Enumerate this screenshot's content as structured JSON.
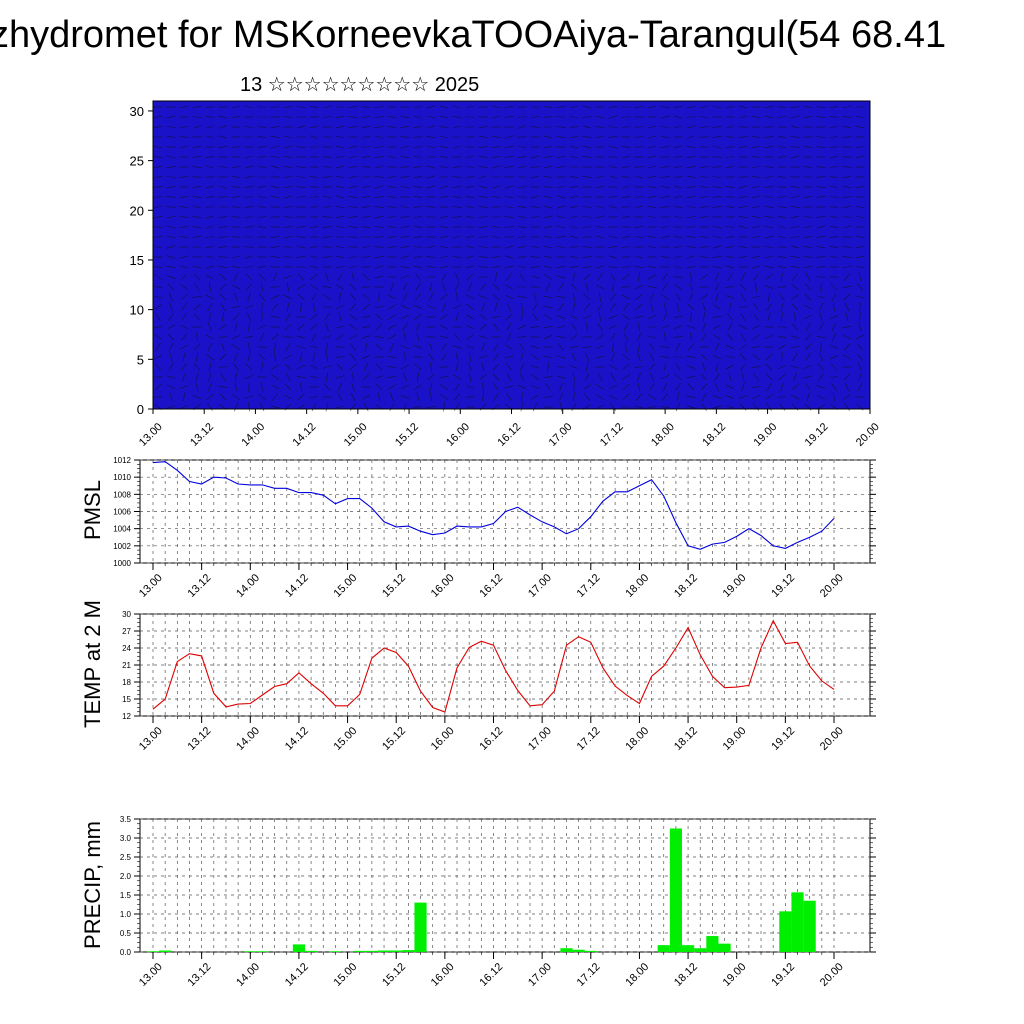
{
  "header": {
    "title": "zhydromet for MSKorneevkaTOOAiya-Tarangul(54 68.41",
    "subtitle": "13 ☆☆☆☆☆☆☆☆☆ 2025"
  },
  "chart_data": [
    {
      "type": "heatmap",
      "name_key": "vertical-section",
      "x_categories": [
        "13.00",
        "13.12",
        "14.00",
        "14.12",
        "15.00",
        "15.12",
        "16.00",
        "16.12",
        "17.00",
        "17.12",
        "18.00",
        "18.12",
        "19.00",
        "19.12",
        "20.00"
      ],
      "ylim": [
        0,
        31
      ],
      "y_ticks": [
        0,
        5,
        10,
        15,
        20,
        25,
        30
      ],
      "colormap": [
        "#1a12c8",
        "#2a3ee8",
        "#5a8cf0",
        "#bde0ff",
        "#f3e060",
        "#f7b500",
        "#f27a00",
        "#e84500",
        "#e01000"
      ],
      "overlay": "wind barbs"
    },
    {
      "type": "line",
      "ylabel": "PMSL",
      "ylim": [
        1000,
        1012
      ],
      "y_ticks": [
        1000,
        1002,
        1004,
        1006,
        1008,
        1010,
        1012
      ],
      "x_ticks": [
        "13.00",
        "13.12",
        "14.00",
        "14.12",
        "15.00",
        "15.12",
        "16.00",
        "16.12",
        "17.00",
        "17.12",
        "18.00",
        "18.12",
        "19.00",
        "19.12",
        "20.00"
      ],
      "color": "#0000dd",
      "values": [
        1011.7,
        1011.8,
        1010.8,
        1009.5,
        1009.2,
        1010.0,
        1009.9,
        1009.2,
        1009.1,
        1009.1,
        1008.7,
        1008.7,
        1008.2,
        1008.2,
        1007.9,
        1006.9,
        1007.5,
        1007.5,
        1006.4,
        1004.8,
        1004.2,
        1004.3,
        1003.7,
        1003.3,
        1003.5,
        1004.3,
        1004.2,
        1004.2,
        1004.6,
        1006.0,
        1006.5,
        1005.6,
        1004.8,
        1004.2,
        1003.4,
        1004.0,
        1005.4,
        1007.2,
        1008.3,
        1008.3,
        1009.0,
        1009.7,
        1007.8,
        1004.7,
        1002.0,
        1001.6,
        1002.2,
        1002.4,
        1003.1,
        1004.0,
        1003.2,
        1002.0,
        1001.7,
        1002.4,
        1003.0,
        1003.7,
        1005.2
      ]
    },
    {
      "type": "line",
      "ylabel": "TEMP at 2 M",
      "ylim": [
        12,
        30
      ],
      "y_ticks": [
        12,
        15,
        18,
        21,
        24,
        27,
        30
      ],
      "x_ticks": [
        "13.00",
        "13.12",
        "14.00",
        "14.12",
        "15.00",
        "15.12",
        "16.00",
        "16.12",
        "17.00",
        "17.12",
        "18.00",
        "18.12",
        "19.00",
        "19.12",
        "20.00"
      ],
      "color": "#dd0000",
      "values": [
        13.2,
        15.0,
        21.6,
        23.0,
        22.6,
        16.0,
        13.6,
        14.1,
        14.2,
        15.7,
        17.2,
        17.7,
        19.6,
        17.7,
        16.0,
        13.8,
        13.8,
        15.8,
        22.2,
        24.0,
        23.2,
        20.8,
        16.4,
        13.5,
        12.7,
        20.5,
        24.1,
        25.2,
        24.5,
        20.0,
        16.5,
        13.8,
        14.0,
        16.4,
        24.5,
        26.0,
        25.0,
        20.5,
        17.3,
        15.6,
        14.2,
        19.0,
        20.8,
        24.0,
        27.6,
        22.8,
        19.0,
        17.0,
        17.1,
        17.4,
        24.0,
        28.8,
        24.8,
        25.0,
        20.8,
        18.2,
        16.7
      ]
    },
    {
      "type": "bar",
      "ylabel": "PRECIP, mm",
      "ylim": [
        0,
        3.5
      ],
      "y_ticks": [
        "0.0",
        "0.5",
        "1.0",
        "1.5",
        "2.0",
        "2.5",
        "3.0",
        "3.5"
      ],
      "x_ticks": [
        "13.00",
        "13.12",
        "14.00",
        "14.12",
        "15.00",
        "15.12",
        "16.00",
        "16.12",
        "17.00",
        "17.12",
        "18.00",
        "18.12",
        "19.00",
        "19.12",
        "20.00"
      ],
      "color": "#00ee00",
      "values": [
        0.02,
        0.04,
        0,
        0,
        0,
        0,
        0,
        0,
        0.02,
        0.02,
        0,
        0,
        0.2,
        0.03,
        0,
        0.02,
        0,
        0.03,
        0.03,
        0.04,
        0.04,
        0.05,
        1.3,
        0,
        0,
        0,
        0,
        0,
        0,
        0,
        0,
        0,
        0,
        0,
        0.1,
        0.06,
        0.03,
        0,
        0,
        0,
        0,
        0,
        0.18,
        3.25,
        0.18,
        0.1,
        0.42,
        0.22,
        0,
        0,
        0,
        0,
        1.07,
        1.57,
        1.35,
        0,
        0
      ]
    }
  ]
}
